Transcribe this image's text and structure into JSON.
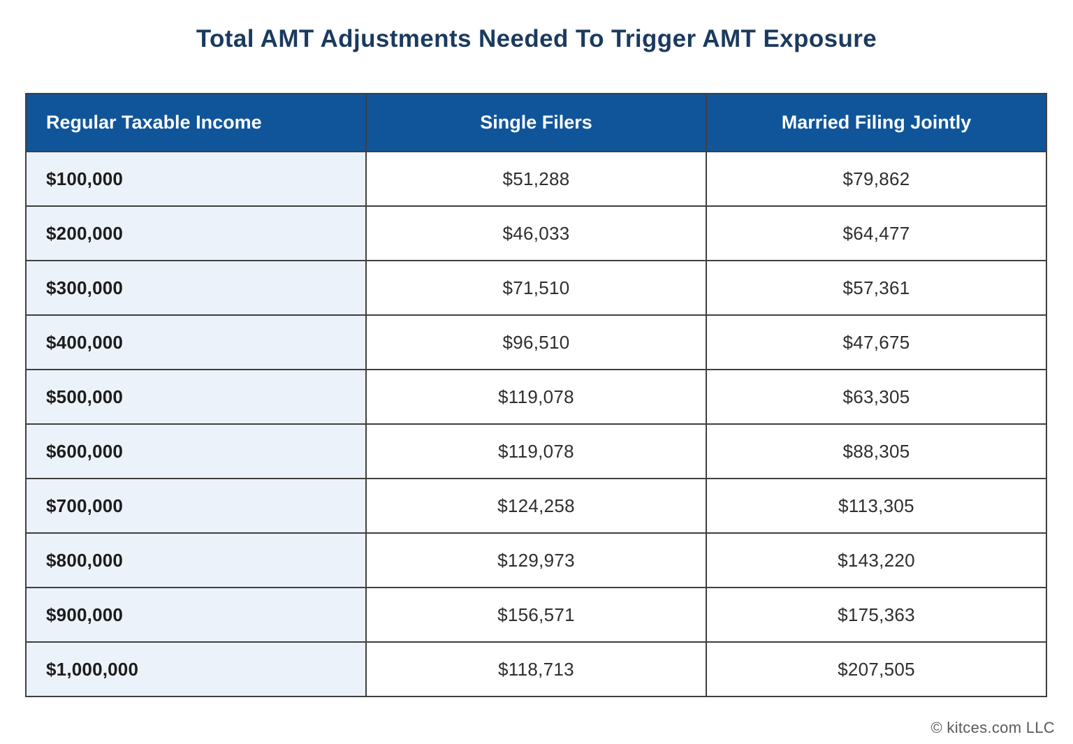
{
  "title": "Total AMT Adjustments Needed To Trigger AMT Exposure",
  "table": {
    "columns": [
      "Regular Taxable Income",
      "Single Filers",
      "Married Filing Jointly"
    ],
    "rows": [
      [
        "$100,000",
        "$51,288",
        "$79,862"
      ],
      [
        "$200,000",
        "$46,033",
        "$64,477"
      ],
      [
        "$300,000",
        "$71,510",
        "$57,361"
      ],
      [
        "$400,000",
        "$96,510",
        "$47,675"
      ],
      [
        "$500,000",
        "$119,078",
        "$63,305"
      ],
      [
        "$600,000",
        "$119,078",
        "$88,305"
      ],
      [
        "$700,000",
        "$124,258",
        "$113,305"
      ],
      [
        "$800,000",
        "$129,973",
        "$143,220"
      ],
      [
        "$900,000",
        "$156,571",
        "$175,363"
      ],
      [
        "$1,000,000",
        "$118,713",
        "$207,505"
      ]
    ]
  },
  "footer": {
    "copyright": "© kitces.com LLC"
  },
  "colors": {
    "header_bg": "#10559A",
    "header_text": "#FFFFFF",
    "label_column_bg": "#EBF2FA",
    "title_color": "#1B3A5E",
    "border_color": "#3F3F3F"
  },
  "chart_data": {
    "type": "table",
    "title": "Total AMT Adjustments Needed To Trigger AMT Exposure",
    "row_header": "Regular Taxable Income",
    "categories": [
      "$100,000",
      "$200,000",
      "$300,000",
      "$400,000",
      "$500,000",
      "$600,000",
      "$700,000",
      "$800,000",
      "$900,000",
      "$1,000,000"
    ],
    "series": [
      {
        "name": "Single Filers",
        "values": [
          51288,
          46033,
          71510,
          96510,
          119078,
          119078,
          124258,
          129973,
          156571,
          118713
        ]
      },
      {
        "name": "Married Filing Jointly",
        "values": [
          79862,
          64477,
          57361,
          47675,
          63305,
          88305,
          113305,
          143220,
          175363,
          207505
        ]
      }
    ]
  }
}
